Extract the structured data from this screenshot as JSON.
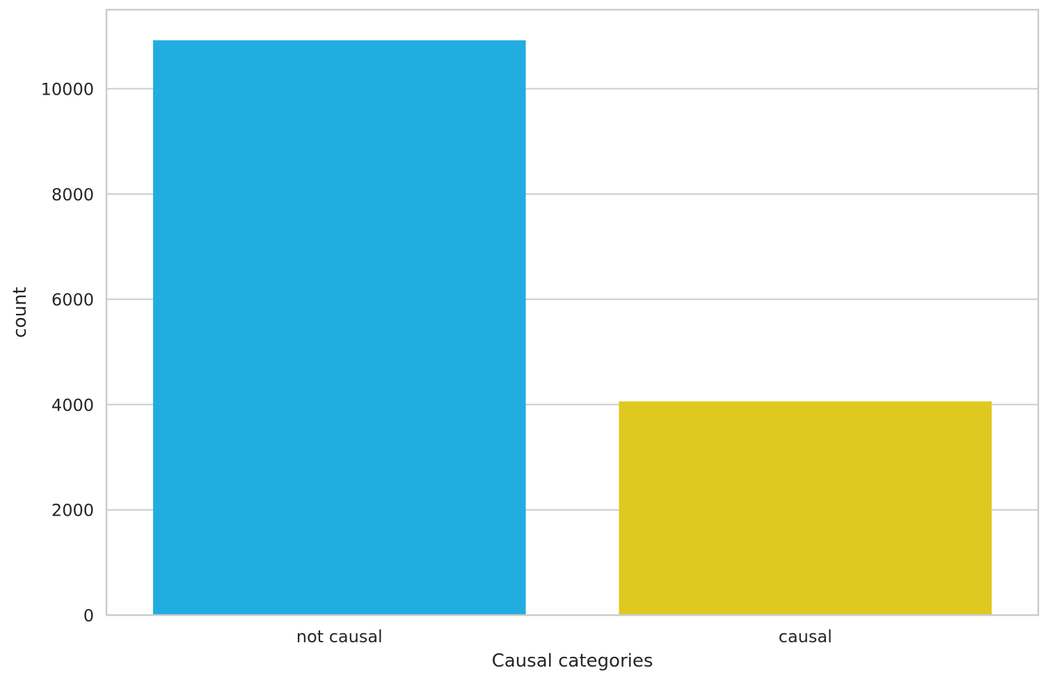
{
  "chart_data": {
    "type": "bar",
    "title": "",
    "xlabel": "Causal categories",
    "ylabel": "count",
    "categories": [
      "not causal",
      "causal"
    ],
    "values": [
      10920,
      4060
    ],
    "colors": [
      "#22ade0",
      "#dfc820"
    ],
    "ylim": [
      0,
      11500
    ],
    "yticks": [
      0,
      2000,
      4000,
      6000,
      8000,
      10000
    ],
    "ytick_labels": [
      "0",
      "2000",
      "4000",
      "6000",
      "8000",
      "10000"
    ],
    "grid": "y",
    "legend": "none"
  }
}
